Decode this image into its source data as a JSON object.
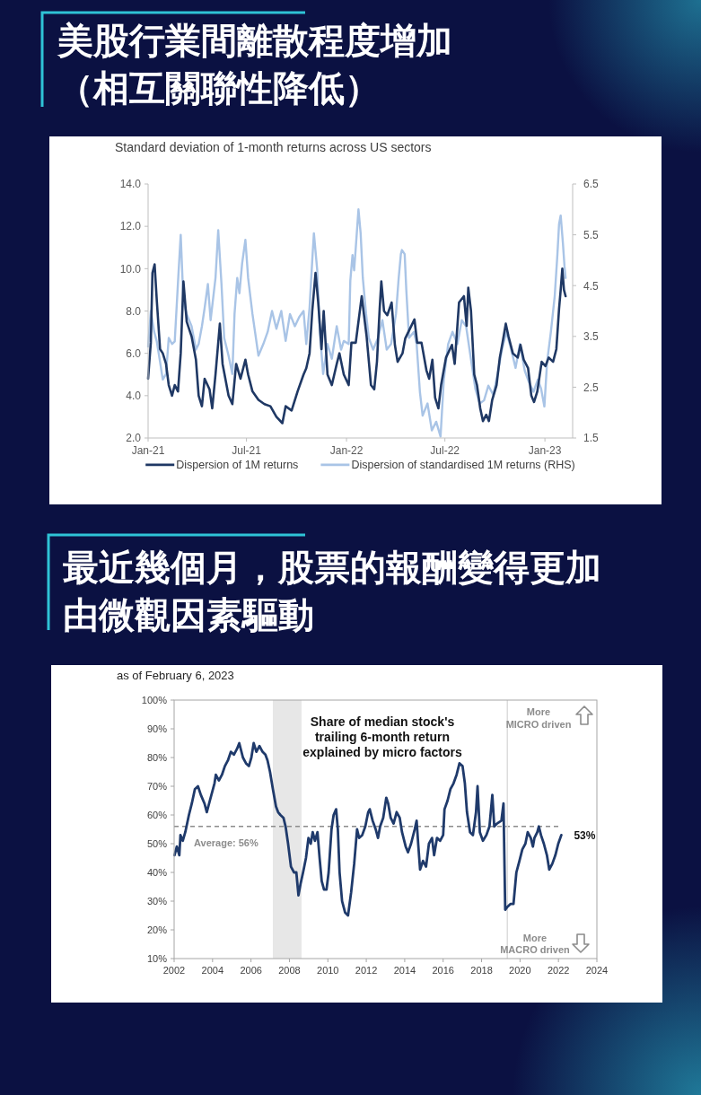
{
  "chart_data": [
    {
      "type": "line",
      "title": "美股行業間離散程度增加（相互關聯性降低）",
      "subtitle": "Standard deviation of 1-month returns across US sectors",
      "xlim": [
        "2021-01-01",
        "2023-02-21"
      ],
      "xticks": [
        {
          "value": "2021-01-01",
          "label": "Jan-21"
        },
        {
          "value": "2021-07-01",
          "label": "Jul-21"
        },
        {
          "value": "2022-01-01",
          "label": "Jan-22"
        },
        {
          "value": "2022-07-01",
          "label": "Jul-22"
        },
        {
          "value": "2023-01-01",
          "label": "Jan-23"
        }
      ],
      "ylim": [
        2,
        14
      ],
      "yticks": [
        {
          "value": 2,
          "label": "2.0"
        },
        {
          "value": 4,
          "label": "4.0"
        },
        {
          "value": 6,
          "label": "6.0"
        },
        {
          "value": 8,
          "label": "8.0"
        },
        {
          "value": 10,
          "label": "10.0"
        },
        {
          "value": 12,
          "label": "12.0"
        },
        {
          "value": 14,
          "label": "14.0"
        }
      ],
      "y2lim": [
        1.5,
        6.5
      ],
      "y2ticks": [
        1.5,
        2.5,
        3.5,
        4.5,
        5.5,
        6.5
      ],
      "legend": "bottom",
      "series": [
        {
          "name": "Dispersion of 1M returns",
          "color": "#1f3864",
          "x": [
            "2021-01-01",
            "2021-01-06",
            "2021-01-09",
            "2021-01-13",
            "2021-01-17",
            "2021-01-23",
            "2021-01-28",
            "2021-02-03",
            "2021-02-08",
            "2021-02-14",
            "2021-02-19",
            "2021-02-25",
            "2021-03-02",
            "2021-03-07",
            "2021-03-13",
            "2021-03-22",
            "2021-03-30",
            "2021-04-04",
            "2021-04-10",
            "2021-04-15",
            "2021-04-24",
            "2021-04-29",
            "2021-05-05",
            "2021-05-13",
            "2021-05-18",
            "2021-05-29",
            "2021-06-05",
            "2021-06-12",
            "2021-06-20",
            "2021-06-29",
            "2021-07-04",
            "2021-07-12",
            "2021-07-23",
            "2021-08-03",
            "2021-08-14",
            "2021-08-25",
            "2021-09-05",
            "2021-09-11",
            "2021-09-22",
            "2021-10-03",
            "2021-10-14",
            "2021-10-19",
            "2021-10-25",
            "2021-10-30",
            "2021-11-05",
            "2021-11-10",
            "2021-11-16",
            "2021-11-20",
            "2021-11-27",
            "2021-12-05",
            "2021-12-14",
            "2021-12-19",
            "2021-12-27",
            "2022-01-05",
            "2022-01-10",
            "2022-01-18",
            "2022-01-27",
            "2022-01-29",
            "2022-02-07",
            "2022-02-15",
            "2022-02-21",
            "2022-02-26",
            "2022-03-03",
            "2022-03-06",
            "2022-03-11",
            "2022-03-17",
            "2022-03-25",
            "2022-03-31",
            "2022-04-05",
            "2022-04-14",
            "2022-04-19",
            "2022-05-06",
            "2022-05-11",
            "2022-05-19",
            "2022-05-28",
            "2022-06-02",
            "2022-06-08",
            "2022-06-13",
            "2022-06-19",
            "2022-06-24",
            "2022-07-03",
            "2022-07-14",
            "2022-07-19",
            "2022-07-27",
            "2022-08-05",
            "2022-08-10",
            "2022-08-13",
            "2022-08-18",
            "2022-08-24",
            "2022-08-29",
            "2022-09-04",
            "2022-09-09",
            "2022-09-15",
            "2022-09-20",
            "2022-09-26",
            "2022-10-04",
            "2022-10-10",
            "2022-10-15",
            "2022-10-21",
            "2022-10-26",
            "2022-11-03",
            "2022-11-12",
            "2022-11-17",
            "2022-11-23",
            "2022-12-01",
            "2022-12-07",
            "2022-12-12",
            "2022-12-18",
            "2022-12-26",
            "2023-01-02",
            "2023-01-08",
            "2023-01-16",
            "2023-01-22",
            "2023-01-27",
            "2023-01-30",
            "2023-02-02",
            "2023-02-05",
            "2023-02-08"
          ],
          "values": [
            4.8,
            6.5,
            9.8,
            10.2,
            8.5,
            6.2,
            6.0,
            5.5,
            4.5,
            4.0,
            4.5,
            4.2,
            6.0,
            9.4,
            7.5,
            6.8,
            5.7,
            4.0,
            3.5,
            4.8,
            4.3,
            3.4,
            5.0,
            7.4,
            5.5,
            4.0,
            3.6,
            5.5,
            4.8,
            5.7,
            5.0,
            4.2,
            3.8,
            3.6,
            3.5,
            3.0,
            2.7,
            3.5,
            3.3,
            4.2,
            5.0,
            5.3,
            6.0,
            8.0,
            9.8,
            8.4,
            6.2,
            8.0,
            5.0,
            4.5,
            5.5,
            6.0,
            5.0,
            4.5,
            6.5,
            6.5,
            8.3,
            8.7,
            6.8,
            4.5,
            4.3,
            5.6,
            8.1,
            9.4,
            8.0,
            7.8,
            8.4,
            6.4,
            5.6,
            6.0,
            6.7,
            7.6,
            6.5,
            6.5,
            5.2,
            4.8,
            5.7,
            3.9,
            3.4,
            4.5,
            5.8,
            6.4,
            5.5,
            8.4,
            8.7,
            7.3,
            9.1,
            8.0,
            5.0,
            4.5,
            3.4,
            2.8,
            3.1,
            2.8,
            3.8,
            4.5,
            5.8,
            6.5,
            7.4,
            6.8,
            6.0,
            5.8,
            6.4,
            5.7,
            5.3,
            4.0,
            3.7,
            4.2,
            5.6,
            5.4,
            5.8,
            5.6,
            6.2,
            8.1,
            9.0,
            10.0,
            9.0,
            8.7
          ]
        },
        {
          "name": "Dispersion of standardised 1M returns (RHS)",
          "color": "#a9c4e6",
          "axis": "y2",
          "x": [
            "2021-01-01",
            "2021-01-06",
            "2021-01-12",
            "2021-01-17",
            "2021-01-23",
            "2021-01-28",
            "2021-02-03",
            "2021-02-08",
            "2021-02-14",
            "2021-02-19",
            "2021-02-26",
            "2021-03-02",
            "2021-03-07",
            "2021-03-13",
            "2021-03-22",
            "2021-03-30",
            "2021-04-04",
            "2021-04-10",
            "2021-04-15",
            "2021-04-21",
            "2021-04-26",
            "2021-05-05",
            "2021-05-10",
            "2021-05-16",
            "2021-05-21",
            "2021-05-29",
            "2021-06-05",
            "2021-06-09",
            "2021-06-14",
            "2021-06-18",
            "2021-06-23",
            "2021-06-29",
            "2021-07-04",
            "2021-07-12",
            "2021-07-23",
            "2021-08-01",
            "2021-08-09",
            "2021-08-17",
            "2021-08-25",
            "2021-09-03",
            "2021-09-11",
            "2021-09-19",
            "2021-09-28",
            "2021-10-06",
            "2021-10-14",
            "2021-10-19",
            "2021-10-25",
            "2021-10-30",
            "2021-11-02",
            "2021-11-08",
            "2021-11-13",
            "2021-11-19",
            "2021-11-27",
            "2021-12-05",
            "2021-12-14",
            "2021-12-22",
            "2021-12-27",
            "2022-01-05",
            "2022-01-08",
            "2022-01-12",
            "2022-01-15",
            "2022-01-18",
            "2022-01-23",
            "2022-01-27",
            "2022-01-31",
            "2022-02-06",
            "2022-02-11",
            "2022-02-19",
            "2022-02-28",
            "2022-03-08",
            "2022-03-16",
            "2022-03-24",
            "2022-04-02",
            "2022-04-07",
            "2022-04-11",
            "2022-04-13",
            "2022-04-18",
            "2022-04-21",
            "2022-04-26",
            "2022-05-05",
            "2022-05-10",
            "2022-05-16",
            "2022-05-21",
            "2022-05-30",
            "2022-06-07",
            "2022-06-15",
            "2022-06-23",
            "2022-06-29",
            "2022-07-07",
            "2022-07-15",
            "2022-07-24",
            "2022-08-01",
            "2022-08-09",
            "2022-08-17",
            "2022-08-26",
            "2022-09-03",
            "2022-09-11",
            "2022-09-19",
            "2022-09-28",
            "2022-10-06",
            "2022-10-14",
            "2022-10-22",
            "2022-10-31",
            "2022-11-08",
            "2022-11-16",
            "2022-11-25",
            "2022-12-03",
            "2022-12-11",
            "2022-12-19",
            "2022-12-25",
            "2022-12-31",
            "2023-01-05",
            "2023-01-12",
            "2023-01-19",
            "2023-01-24",
            "2023-01-27",
            "2023-01-30",
            "2023-02-03",
            "2023-02-06",
            "2023-02-08"
          ],
          "values": [
            3.3,
            4.0,
            3.6,
            3.4,
            3.0,
            2.65,
            2.76,
            3.47,
            3.35,
            3.4,
            4.76,
            5.5,
            4.18,
            3.94,
            3.7,
            3.24,
            3.35,
            3.7,
            4.06,
            4.53,
            3.82,
            4.65,
            5.59,
            4.53,
            3.47,
            3.12,
            2.76,
            3.94,
            4.65,
            4.35,
            4.94,
            5.4,
            4.65,
            3.94,
            3.12,
            3.35,
            3.59,
            4.0,
            3.65,
            4.0,
            3.41,
            3.94,
            3.7,
            3.88,
            4.0,
            3.35,
            4.06,
            5.0,
            5.53,
            4.82,
            3.59,
            2.76,
            3.35,
            3.06,
            3.7,
            3.24,
            3.41,
            3.35,
            4.6,
            5.1,
            4.8,
            5.24,
            6.0,
            5.53,
            4.65,
            3.94,
            3.47,
            3.24,
            3.47,
            3.82,
            3.24,
            3.35,
            3.94,
            4.65,
            5.12,
            5.2,
            5.12,
            4.41,
            3.47,
            3.59,
            3.35,
            2.41,
            1.94,
            2.18,
            1.65,
            1.82,
            1.53,
            2.65,
            3.35,
            3.59,
            3.35,
            3.82,
            3.7,
            3.12,
            2.47,
            2.18,
            2.24,
            2.53,
            2.35,
            2.76,
            3.24,
            3.59,
            3.24,
            2.88,
            3.35,
            2.82,
            2.59,
            2.41,
            2.65,
            2.47,
            2.12,
            3.0,
            3.59,
            4.29,
            5.12,
            5.71,
            5.88,
            5.35,
            4.88,
            4.65
          ]
        }
      ]
    },
    {
      "type": "line",
      "title": "最近幾個月，股票的報酬變得更加由微觀因素驅動",
      "subtitle": "as of February 6, 2023",
      "xlim": [
        2002,
        2024
      ],
      "xticks": [
        2002,
        2004,
        2006,
        2008,
        2010,
        2012,
        2014,
        2016,
        2018,
        2020,
        2022,
        2024
      ],
      "ylim": [
        10,
        100
      ],
      "yticks": [
        {
          "value": 10,
          "label": "10%"
        },
        {
          "value": 20,
          "label": "20%"
        },
        {
          "value": 30,
          "label": "30%"
        },
        {
          "value": 40,
          "label": "40%"
        },
        {
          "value": 50,
          "label": "50%"
        },
        {
          "value": 60,
          "label": "60%"
        },
        {
          "value": 70,
          "label": "70%"
        },
        {
          "value": 80,
          "label": "80%"
        },
        {
          "value": 90,
          "label": "90%"
        },
        {
          "value": 100,
          "label": "100%"
        }
      ],
      "bands": [
        {
          "axis": "x",
          "from": 2007.14,
          "to": 2008.63,
          "color": "#e7e7e7"
        }
      ],
      "ref_lines": [
        {
          "axis": "y",
          "value": 56,
          "label": "Average: 56%",
          "color": "#8c8c8c",
          "line_style": "dashed"
        },
        {
          "axis": "x",
          "value": 2019.34,
          "color": "#dcdcdc"
        }
      ],
      "annotations": [
        "Share of median stock's\ntrailing 6-month return\nexplained by micro factors",
        "More\nMICRO driven",
        "More\nMACRO driven",
        {
          "text": "53%",
          "x": 2022.15,
          "y": 53
        }
      ],
      "series": [
        {
          "color": "#1f3a6b",
          "x": [
            2002.02,
            2002.14,
            2002.27,
            2002.33,
            2002.45,
            2002.58,
            2002.77,
            2002.92,
            2003.08,
            2003.24,
            2003.39,
            2003.58,
            2003.7,
            2003.86,
            2004.1,
            2004.17,
            2004.33,
            2004.49,
            2004.64,
            2004.8,
            2004.95,
            2005.11,
            2005.27,
            2005.39,
            2005.58,
            2005.74,
            2005.89,
            2006.02,
            2006.14,
            2006.28,
            2006.44,
            2006.6,
            2006.75,
            2006.86,
            2006.99,
            2007.14,
            2007.3,
            2007.41,
            2007.53,
            2007.69,
            2007.8,
            2007.93,
            2008.08,
            2008.24,
            2008.36,
            2008.47,
            2008.58,
            2008.71,
            2008.86,
            2008.99,
            2009.11,
            2009.21,
            2009.33,
            2009.46,
            2009.57,
            2009.68,
            2009.8,
            2009.93,
            2010.04,
            2010.19,
            2010.3,
            2010.43,
            2010.52,
            2010.61,
            2010.74,
            2010.9,
            2011.05,
            2011.21,
            2011.37,
            2011.52,
            2011.63,
            2011.79,
            2011.95,
            2012.1,
            2012.18,
            2012.33,
            2012.49,
            2012.61,
            2012.72,
            2012.88,
            2013.04,
            2013.14,
            2013.27,
            2013.42,
            2013.58,
            2013.74,
            2013.86,
            2014.05,
            2014.17,
            2014.33,
            2014.52,
            2014.62,
            2014.7,
            2014.8,
            2014.95,
            2015.11,
            2015.26,
            2015.42,
            2015.53,
            2015.68,
            2015.84,
            2016.0,
            2016.07,
            2016.23,
            2016.38,
            2016.54,
            2016.7,
            2016.85,
            2017.01,
            2017.13,
            2017.24,
            2017.4,
            2017.55,
            2017.71,
            2017.79,
            2017.91,
            2018.07,
            2018.25,
            2018.41,
            2018.56,
            2018.66,
            2018.8,
            2019.03,
            2019.14,
            2019.23,
            2019.34,
            2019.5,
            2019.66,
            2019.81,
            2019.97,
            2020.12,
            2020.28,
            2020.4,
            2020.56,
            2020.67,
            2020.75,
            2020.9,
            2020.98,
            2021.09,
            2021.24,
            2021.4,
            2021.52,
            2021.68,
            2021.84,
            2021.99,
            2022.15
          ],
          "values": [
            46,
            49,
            46,
            53,
            51,
            54,
            60,
            64,
            69,
            70,
            67,
            64,
            61,
            65,
            71,
            74,
            72,
            74,
            77,
            79,
            82,
            81,
            83,
            85,
            80,
            78,
            77,
            80,
            85,
            82,
            84,
            82,
            81,
            79,
            75,
            69,
            63,
            61,
            60,
            59,
            56,
            50,
            42,
            40,
            40,
            32,
            36,
            40,
            45,
            52,
            50,
            54,
            51,
            54,
            45,
            37,
            34,
            34,
            40,
            55,
            60,
            62,
            55,
            40,
            30,
            26,
            25,
            33,
            43,
            55,
            52,
            53,
            56,
            61,
            62,
            58,
            55,
            52,
            56,
            59,
            66,
            64,
            59,
            57,
            61,
            59,
            54,
            49,
            47,
            50,
            55,
            58,
            50,
            41,
            44,
            42,
            50,
            52,
            46,
            52,
            51,
            53,
            62,
            65,
            69,
            71,
            74,
            78,
            77,
            71,
            61,
            54,
            53,
            61,
            70,
            54,
            51,
            53,
            56,
            67,
            56,
            57,
            58,
            64,
            27,
            28,
            29,
            29,
            40,
            44,
            48,
            50,
            54,
            52,
            49,
            52,
            54,
            56,
            53,
            50,
            46,
            41,
            43,
            46,
            50,
            53
          ]
        }
      ]
    }
  ]
}
